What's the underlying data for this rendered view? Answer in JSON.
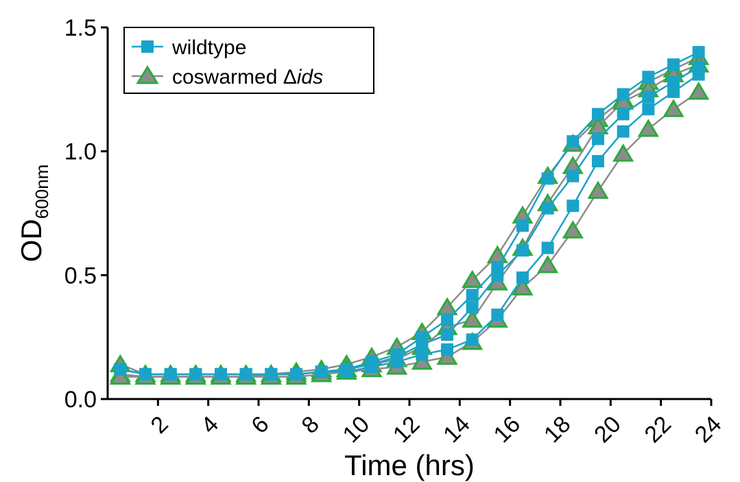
{
  "chart_data": {
    "type": "line",
    "xlabel": "Time (hrs)",
    "ylabel": {
      "main": "OD",
      "sub": "600nm"
    },
    "xlim": [
      0,
      24
    ],
    "ylim": [
      0,
      1.5
    ],
    "xticks": [
      2,
      4,
      6,
      8,
      10,
      12,
      14,
      16,
      18,
      20,
      22,
      24
    ],
    "xtick_labels": [
      "2",
      "4",
      "6",
      "8",
      "10",
      "12",
      "14",
      "16",
      "18",
      "20",
      "22",
      "24"
    ],
    "yticks": [
      0.0,
      0.5,
      1.0,
      1.5
    ],
    "ytick_labels": [
      "0.0",
      "0.5",
      "1.0",
      "1.5"
    ],
    "grid": false,
    "legend_position": "top-left",
    "colors": {
      "wildtype": "#1aa3c9",
      "coswarmed_line": "#8c8c8c",
      "coswarmed_marker_fill": "#8c8c8c",
      "coswarmed_marker_edge": "#2eaa3c"
    },
    "legend": [
      {
        "series_group": "wildtype",
        "label": "wildtype",
        "marker": "square"
      },
      {
        "series_group": "coswarmed",
        "label_prefix": "coswarmed Δ",
        "label_italic": "ids",
        "marker": "triangle"
      }
    ],
    "x": [
      0.5,
      1.5,
      2.5,
      3.5,
      4.5,
      5.5,
      6.5,
      7.5,
      8.5,
      9.5,
      10.5,
      11.5,
      12.5,
      13.5,
      14.5,
      15.5,
      16.5,
      17.5,
      18.5,
      19.5,
      20.5,
      21.5,
      22.5,
      23.5
    ],
    "series": [
      {
        "group": "wildtype",
        "marker": "square",
        "values": [
          0.12,
          0.1,
          0.1,
          0.1,
          0.1,
          0.1,
          0.1,
          0.1,
          0.11,
          0.12,
          0.15,
          0.18,
          0.25,
          0.32,
          0.42,
          0.53,
          0.7,
          0.89,
          1.04,
          1.15,
          1.23,
          1.3,
          1.35,
          1.4
        ]
      },
      {
        "group": "wildtype",
        "marker": "square",
        "values": [
          0.12,
          0.1,
          0.1,
          0.1,
          0.1,
          0.1,
          0.1,
          0.1,
          0.11,
          0.12,
          0.14,
          0.17,
          0.22,
          0.26,
          0.37,
          0.5,
          0.6,
          0.77,
          0.9,
          1.05,
          1.15,
          1.22,
          1.28,
          1.34
        ]
      },
      {
        "group": "wildtype",
        "marker": "square",
        "values": [
          0.12,
          0.1,
          0.1,
          0.1,
          0.1,
          0.1,
          0.1,
          0.1,
          0.11,
          0.11,
          0.13,
          0.15,
          0.18,
          0.2,
          0.24,
          0.34,
          0.49,
          0.61,
          0.78,
          0.96,
          1.08,
          1.17,
          1.24,
          1.31
        ]
      },
      {
        "group": "coswarmed",
        "marker": "triangle",
        "values": [
          0.14,
          0.1,
          0.1,
          0.1,
          0.1,
          0.1,
          0.1,
          0.11,
          0.12,
          0.14,
          0.17,
          0.21,
          0.27,
          0.37,
          0.48,
          0.58,
          0.74,
          0.9,
          1.03,
          1.13,
          1.21,
          1.28,
          1.33,
          1.38
        ]
      },
      {
        "group": "coswarmed",
        "marker": "triangle",
        "values": [
          0.1,
          0.09,
          0.09,
          0.09,
          0.09,
          0.09,
          0.1,
          0.1,
          0.11,
          0.12,
          0.14,
          0.16,
          0.21,
          0.29,
          0.32,
          0.47,
          0.61,
          0.79,
          0.94,
          1.1,
          1.2,
          1.25,
          1.31,
          1.35
        ]
      },
      {
        "group": "coswarmed",
        "marker": "triangle",
        "values": [
          0.09,
          0.09,
          0.09,
          0.09,
          0.09,
          0.09,
          0.09,
          0.09,
          0.1,
          0.11,
          0.12,
          0.13,
          0.15,
          0.17,
          0.23,
          0.32,
          0.45,
          0.54,
          0.68,
          0.84,
          0.99,
          1.09,
          1.17,
          1.24
        ]
      }
    ]
  }
}
